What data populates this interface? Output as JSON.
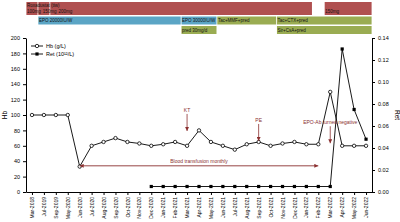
{
  "chart_data": {
    "type": "line",
    "categories": [
      "Mar-2018",
      "Jul-2019",
      "Sep-2019",
      "May-2020",
      "Jun-2020",
      "Jul-2020",
      "Aug-2020",
      "Sep-2020",
      "Oct-2020",
      "Nov-2020",
      "Dec-2020",
      "Jan-2021",
      "Feb-2021",
      "Mar-2021",
      "Apr-2021",
      "May-2021",
      "Jun-2021",
      "Jul-2021",
      "Aug-2021",
      "Sep-2021",
      "Oct-2021",
      "Nov-2021",
      "Dec-2021",
      "Jan-2022",
      "Feb-2022",
      "Mar-2022",
      "Apr-2022",
      "May-2022",
      "Jun-2022"
    ],
    "series": [
      {
        "name": "Hb (g/L)",
        "color": "black",
        "marker": "circle",
        "axis": "y",
        "values": [
          100,
          100,
          100,
          100,
          33,
          60,
          65,
          70,
          65,
          63,
          60,
          62,
          65,
          60,
          80,
          65,
          60,
          55,
          62,
          65,
          60,
          63,
          65,
          62,
          62,
          130,
          60,
          60,
          60
        ]
      },
      {
        "name": "Ret (10¹²/L)",
        "color": "black",
        "marker": "square",
        "axis": "y2",
        "values": [
          null,
          null,
          null,
          null,
          null,
          null,
          null,
          null,
          null,
          null,
          0.005,
          0.005,
          0.005,
          0.005,
          0.005,
          0.005,
          0.005,
          0.005,
          0.005,
          0.005,
          0.005,
          0.005,
          0.005,
          0.005,
          0.005,
          0.005,
          0.13,
          0.075,
          0.048
        ]
      }
    ],
    "ylabel": "Hb",
    "y2label": "Ret",
    "ylim": [
      0,
      200
    ],
    "yticks": [
      0,
      20,
      40,
      60,
      80,
      100,
      120,
      140,
      160,
      180,
      200
    ],
    "y2lim": [
      0,
      0.14
    ],
    "y2ticks": [
      {
        "value": 0,
        "label": "0.00"
      },
      0.02,
      0.04,
      0.06,
      0.08,
      {
        "value": 0.1,
        "label": "0.10"
      },
      0.12,
      0.14
    ],
    "legend": "upper left",
    "grid": false,
    "annotations": [
      {
        "text": "Roxadustat (tiw)",
        "color": "#b05050",
        "spans": [
          {
            "text": "100mg",
            "x": [
              "Mar-2018",
              "Mar-2018"
            ]
          },
          {
            "text": "150mg",
            "x": [
              "Jul-2019",
              "Jul-2019"
            ]
          },
          {
            "text": "200mg",
            "x": [
              "Sep-2019",
              "Jan-2022"
            ]
          },
          {
            "text": "150mg",
            "x": [
              "Mar-2022",
              "Jun-2022"
            ]
          }
        ]
      },
      {
        "text": "EPO 20000IU/W",
        "color": "#5ba5c5",
        "x": [
          "Jul-2019",
          "Feb-2021"
        ]
      },
      {
        "text": "EPO 30000IU/W",
        "color": "#5ba5c5",
        "x": [
          "Mar-2021",
          "May-2021"
        ]
      },
      {
        "text": "pred 30mg/d",
        "color": "#9aac52",
        "x": [
          "Mar-2021",
          "May-2021"
        ]
      },
      {
        "text": "Tac+MMF+pred",
        "color": "#9aac52",
        "x": [
          "Jun-2021",
          "Oct-2021"
        ]
      },
      {
        "text": "Tac+CTX+pred",
        "color": "#9aac52",
        "x": [
          "Nov-2021",
          "Jun-2022"
        ]
      },
      {
        "text": "Sir+CsA+pred",
        "color": "#9aac52",
        "x": [
          "Nov-2021",
          "Jun-2022"
        ]
      },
      {
        "text": "KT",
        "color": "#8b3030",
        "x": "Mar-2021",
        "y": 78
      },
      {
        "text": "PE",
        "color": "#8b3030",
        "x": "Sep-2021",
        "y": 65
      },
      {
        "text": "EPO-Ab turned negative",
        "color": "#8b3030",
        "x": "Mar-2022",
        "y": 62
      },
      {
        "text": "Blood transfusion monthly",
        "color": "#8b3030",
        "x": [
          "Jun-2020",
          "Feb-2022"
        ],
        "y": 34
      }
    ]
  }
}
